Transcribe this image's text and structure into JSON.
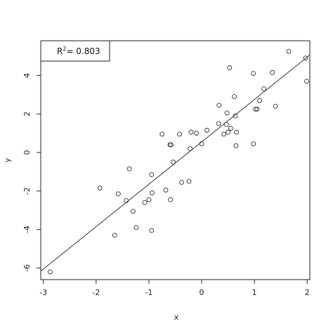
{
  "chart_data": {
    "type": "scatter",
    "xlabel": "x",
    "ylabel": "y",
    "xlim": [
      -3.05,
      2.05
    ],
    "ylim": [
      -6.6,
      5.8
    ],
    "x_ticks": [
      -3,
      -2,
      -1,
      0,
      1,
      2
    ],
    "y_ticks": [
      -6,
      -4,
      -2,
      0,
      2,
      4
    ],
    "x_tick_labels": [
      "-3",
      "-2",
      "-1",
      "0",
      "1",
      "2"
    ],
    "y_tick_labels": [
      "-6",
      "-4",
      "-2",
      "0",
      "2",
      "4"
    ],
    "grid": false,
    "legend": {
      "placement": "top-left",
      "prefix": "R",
      "superscript": "2",
      "value_text": "= 0.803"
    },
    "fit_line": {
      "intercept": 0.55,
      "slope": 2.2
    },
    "points": [
      {
        "x": -2.87,
        "y": -6.2
      },
      {
        "x": -1.93,
        "y": -1.85
      },
      {
        "x": -1.65,
        "y": -4.3
      },
      {
        "x": -1.58,
        "y": -2.15
      },
      {
        "x": -1.43,
        "y": -2.5
      },
      {
        "x": -1.37,
        "y": -0.85
      },
      {
        "x": -1.3,
        "y": -3.05
      },
      {
        "x": -1.24,
        "y": -3.9
      },
      {
        "x": -1.08,
        "y": -2.6
      },
      {
        "x": -1.0,
        "y": -2.45
      },
      {
        "x": -0.95,
        "y": -1.15
      },
      {
        "x": -0.94,
        "y": -2.1
      },
      {
        "x": -0.95,
        "y": -4.05
      },
      {
        "x": -0.75,
        "y": 0.95
      },
      {
        "x": -0.68,
        "y": -1.95
      },
      {
        "x": -0.6,
        "y": 0.4
      },
      {
        "x": -0.59,
        "y": -2.45
      },
      {
        "x": -0.58,
        "y": 0.4
      },
      {
        "x": -0.54,
        "y": -0.5
      },
      {
        "x": -0.42,
        "y": 0.95
      },
      {
        "x": -0.38,
        "y": -1.55
      },
      {
        "x": -0.24,
        "y": -1.5
      },
      {
        "x": -0.22,
        "y": 0.2
      },
      {
        "x": -0.2,
        "y": 1.05
      },
      {
        "x": -0.1,
        "y": 1.0
      },
      {
        "x": 0.0,
        "y": 0.45
      },
      {
        "x": 0.1,
        "y": 1.15
      },
      {
        "x": 0.32,
        "y": 1.5
      },
      {
        "x": 0.33,
        "y": 2.45
      },
      {
        "x": 0.42,
        "y": 0.95
      },
      {
        "x": 0.47,
        "y": 1.45
      },
      {
        "x": 0.48,
        "y": 2.05
      },
      {
        "x": 0.5,
        "y": 1.05
      },
      {
        "x": 0.53,
        "y": 4.4
      },
      {
        "x": 0.55,
        "y": 1.25
      },
      {
        "x": 0.62,
        "y": 2.9
      },
      {
        "x": 0.64,
        "y": 1.9
      },
      {
        "x": 0.65,
        "y": 0.35
      },
      {
        "x": 0.66,
        "y": 1.05
      },
      {
        "x": 0.98,
        "y": 4.1
      },
      {
        "x": 0.98,
        "y": 0.45
      },
      {
        "x": 1.02,
        "y": 2.25
      },
      {
        "x": 1.05,
        "y": 2.25
      },
      {
        "x": 1.1,
        "y": 2.7
      },
      {
        "x": 1.18,
        "y": 3.3
      },
      {
        "x": 1.34,
        "y": 4.15
      },
      {
        "x": 1.4,
        "y": 2.4
      },
      {
        "x": 1.65,
        "y": 5.25
      },
      {
        "x": 1.97,
        "y": 4.9
      },
      {
        "x": 1.99,
        "y": 3.7
      }
    ]
  }
}
